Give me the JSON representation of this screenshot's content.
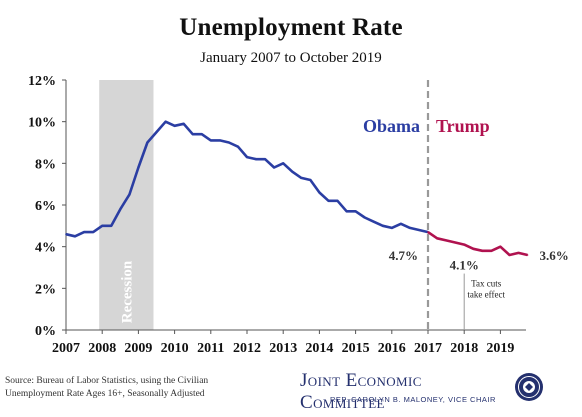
{
  "chart_data": {
    "type": "line",
    "title": "Unemployment Rate",
    "subtitle": "January 2007 to October 2019",
    "ylim": [
      0,
      12
    ],
    "y_ticks": [
      "0%",
      "2%",
      "4%",
      "6%",
      "8%",
      "10%",
      "12%"
    ],
    "x_ticks": [
      "2007",
      "2008",
      "2009",
      "2010",
      "2011",
      "2012",
      "2013",
      "2014",
      "2015",
      "2016",
      "2017",
      "2018",
      "2019"
    ],
    "grid": false,
    "recession": {
      "label": "Recession",
      "start": "2007-12",
      "end": "2009-06"
    },
    "administrations": [
      {
        "name": "Obama",
        "color": "#2b3ea3"
      },
      {
        "name": "Trump",
        "color": "#b0124f"
      }
    ],
    "divider_date": "2017-01",
    "series": [
      {
        "name": "Obama",
        "color": "#2b3ea3",
        "points": [
          [
            "2007-01",
            4.6
          ],
          [
            "2007-04",
            4.5
          ],
          [
            "2007-07",
            4.7
          ],
          [
            "2007-10",
            4.7
          ],
          [
            "2008-01",
            5.0
          ],
          [
            "2008-04",
            5.0
          ],
          [
            "2008-07",
            5.8
          ],
          [
            "2008-10",
            6.5
          ],
          [
            "2009-01",
            7.8
          ],
          [
            "2009-04",
            9.0
          ],
          [
            "2009-07",
            9.5
          ],
          [
            "2009-10",
            10.0
          ],
          [
            "2010-01",
            9.8
          ],
          [
            "2010-04",
            9.9
          ],
          [
            "2010-07",
            9.4
          ],
          [
            "2010-10",
            9.4
          ],
          [
            "2011-01",
            9.1
          ],
          [
            "2011-04",
            9.1
          ],
          [
            "2011-07",
            9.0
          ],
          [
            "2011-10",
            8.8
          ],
          [
            "2012-01",
            8.3
          ],
          [
            "2012-04",
            8.2
          ],
          [
            "2012-07",
            8.2
          ],
          [
            "2012-10",
            7.8
          ],
          [
            "2013-01",
            8.0
          ],
          [
            "2013-04",
            7.6
          ],
          [
            "2013-07",
            7.3
          ],
          [
            "2013-10",
            7.2
          ],
          [
            "2014-01",
            6.6
          ],
          [
            "2014-04",
            6.2
          ],
          [
            "2014-07",
            6.2
          ],
          [
            "2014-10",
            5.7
          ],
          [
            "2015-01",
            5.7
          ],
          [
            "2015-04",
            5.4
          ],
          [
            "2015-07",
            5.2
          ],
          [
            "2015-10",
            5.0
          ],
          [
            "2016-01",
            4.9
          ],
          [
            "2016-04",
            5.1
          ],
          [
            "2016-07",
            4.9
          ],
          [
            "2016-10",
            4.8
          ],
          [
            "2017-01",
            4.7
          ]
        ]
      },
      {
        "name": "Trump",
        "color": "#b0124f",
        "points": [
          [
            "2017-01",
            4.7
          ],
          [
            "2017-04",
            4.4
          ],
          [
            "2017-07",
            4.3
          ],
          [
            "2017-10",
            4.2
          ],
          [
            "2018-01",
            4.1
          ],
          [
            "2018-04",
            3.9
          ],
          [
            "2018-07",
            3.8
          ],
          [
            "2018-10",
            3.8
          ],
          [
            "2019-01",
            4.0
          ],
          [
            "2019-04",
            3.6
          ],
          [
            "2019-07",
            3.7
          ],
          [
            "2019-10",
            3.6
          ]
        ]
      }
    ],
    "data_labels": [
      {
        "date": "2017-01",
        "value": 4.7,
        "text": "4.7%"
      },
      {
        "date": "2018-01",
        "value": 4.1,
        "text": "4.1%"
      },
      {
        "date": "2019-10",
        "value": 3.6,
        "text": "3.6%"
      }
    ],
    "annotations": [
      {
        "date": "2018-01",
        "lines": [
          "Tax cuts",
          "take effect"
        ]
      }
    ]
  },
  "source_text": [
    "Source: Bureau of Labor Statistics, using the Civilian",
    "Unemployment Rate Ages 16+, Seasonally Adjusted"
  ],
  "branding": {
    "org": "Joint Economic Committee",
    "sub": "Rep. Carolyn B. Maloney, Vice Chair"
  }
}
